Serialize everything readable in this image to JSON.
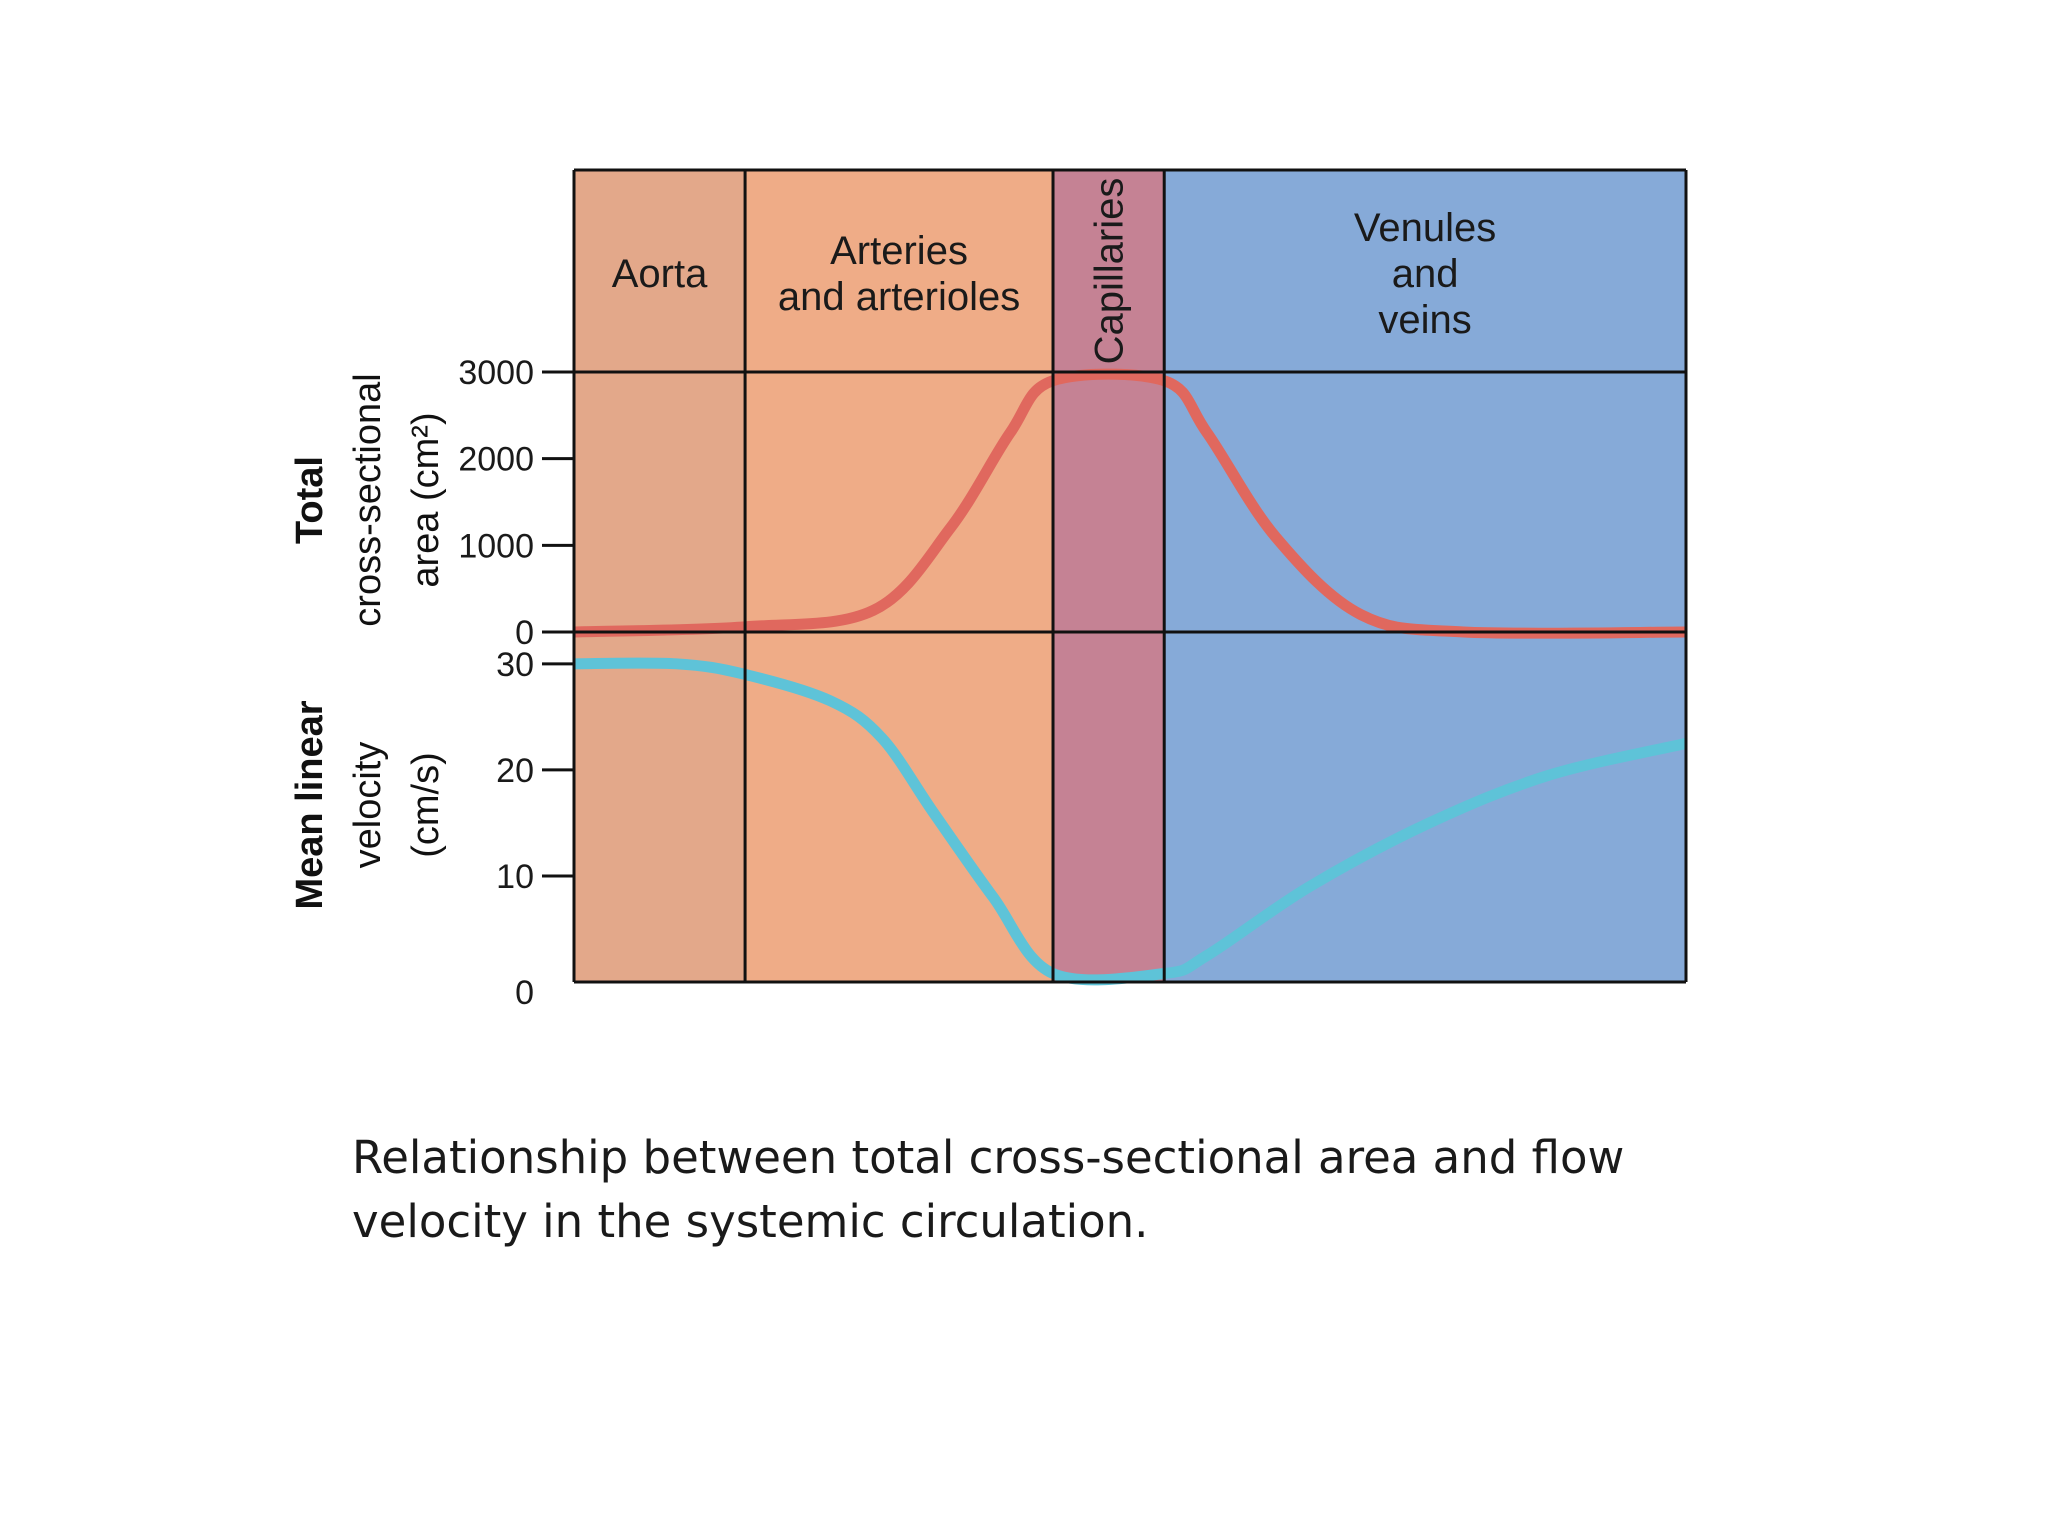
{
  "chart_data": {
    "type": "line",
    "segments": [
      {
        "label_lines": [
          "Aorta"
        ],
        "color": "#E3A88A",
        "start": 0,
        "end": 1
      },
      {
        "label_lines": [
          "Arteries",
          "and arterioles"
        ],
        "color": "#EFAC87",
        "start": 1,
        "end": 2.8
      },
      {
        "label_lines": [
          "Capillaries"
        ],
        "color": "#C58294",
        "start": 2.8,
        "end": 3.45,
        "vertical_label": true
      },
      {
        "label_lines": [
          "Venules",
          "and",
          "veins"
        ],
        "color": "#86AAD8",
        "start": 3.45,
        "end": 6.5
      }
    ],
    "x_range": [
      0,
      6.5
    ],
    "panels": [
      {
        "id": "area",
        "ylabel_lines": [
          "Total",
          "cross-sectional",
          "area (cm²)"
        ],
        "ylim": [
          0,
          3000
        ],
        "ticks": [
          0,
          1000,
          2000,
          3000
        ],
        "tick_labels": [
          "0",
          "1000",
          "2000",
          "3000"
        ],
        "series": [
          {
            "color": "#E0685E",
            "x": [
              0,
              1,
              1.75,
              2.2,
              2.55,
              2.8,
              3.45,
              3.7,
              4.1,
              4.6,
              5.2,
              6.5
            ],
            "values": [
              0,
              60,
              250,
              1200,
              2300,
              2900,
              2900,
              2300,
              1100,
              200,
              0,
              0
            ]
          }
        ]
      },
      {
        "id": "velocity",
        "ylabel_lines": [
          "Mean linear",
          "velocity",
          "(cm/s)"
        ],
        "ylim": [
          0,
          33
        ],
        "ticks": [
          0,
          10,
          20,
          30
        ],
        "tick_labels": [
          "0",
          "10",
          "20",
          "30"
        ],
        "series": [
          {
            "color": "#5EC3D8",
            "x": [
              0,
              0.6,
              1.0,
              1.5,
              1.8,
              2.1,
              2.45,
              2.8,
              3.45,
              3.7,
              4.3,
              5.0,
              5.7,
              6.5
            ],
            "values": [
              30,
              30,
              29,
              26.5,
              23,
              16,
              8,
              0.8,
              0.8,
              2.5,
              9,
              15,
              19.5,
              22.5
            ]
          }
        ]
      }
    ],
    "grid": false
  },
  "caption": {
    "line1": "Relationship between total cross-sectional area and flow",
    "line2": "velocity in the systemic circulation."
  }
}
